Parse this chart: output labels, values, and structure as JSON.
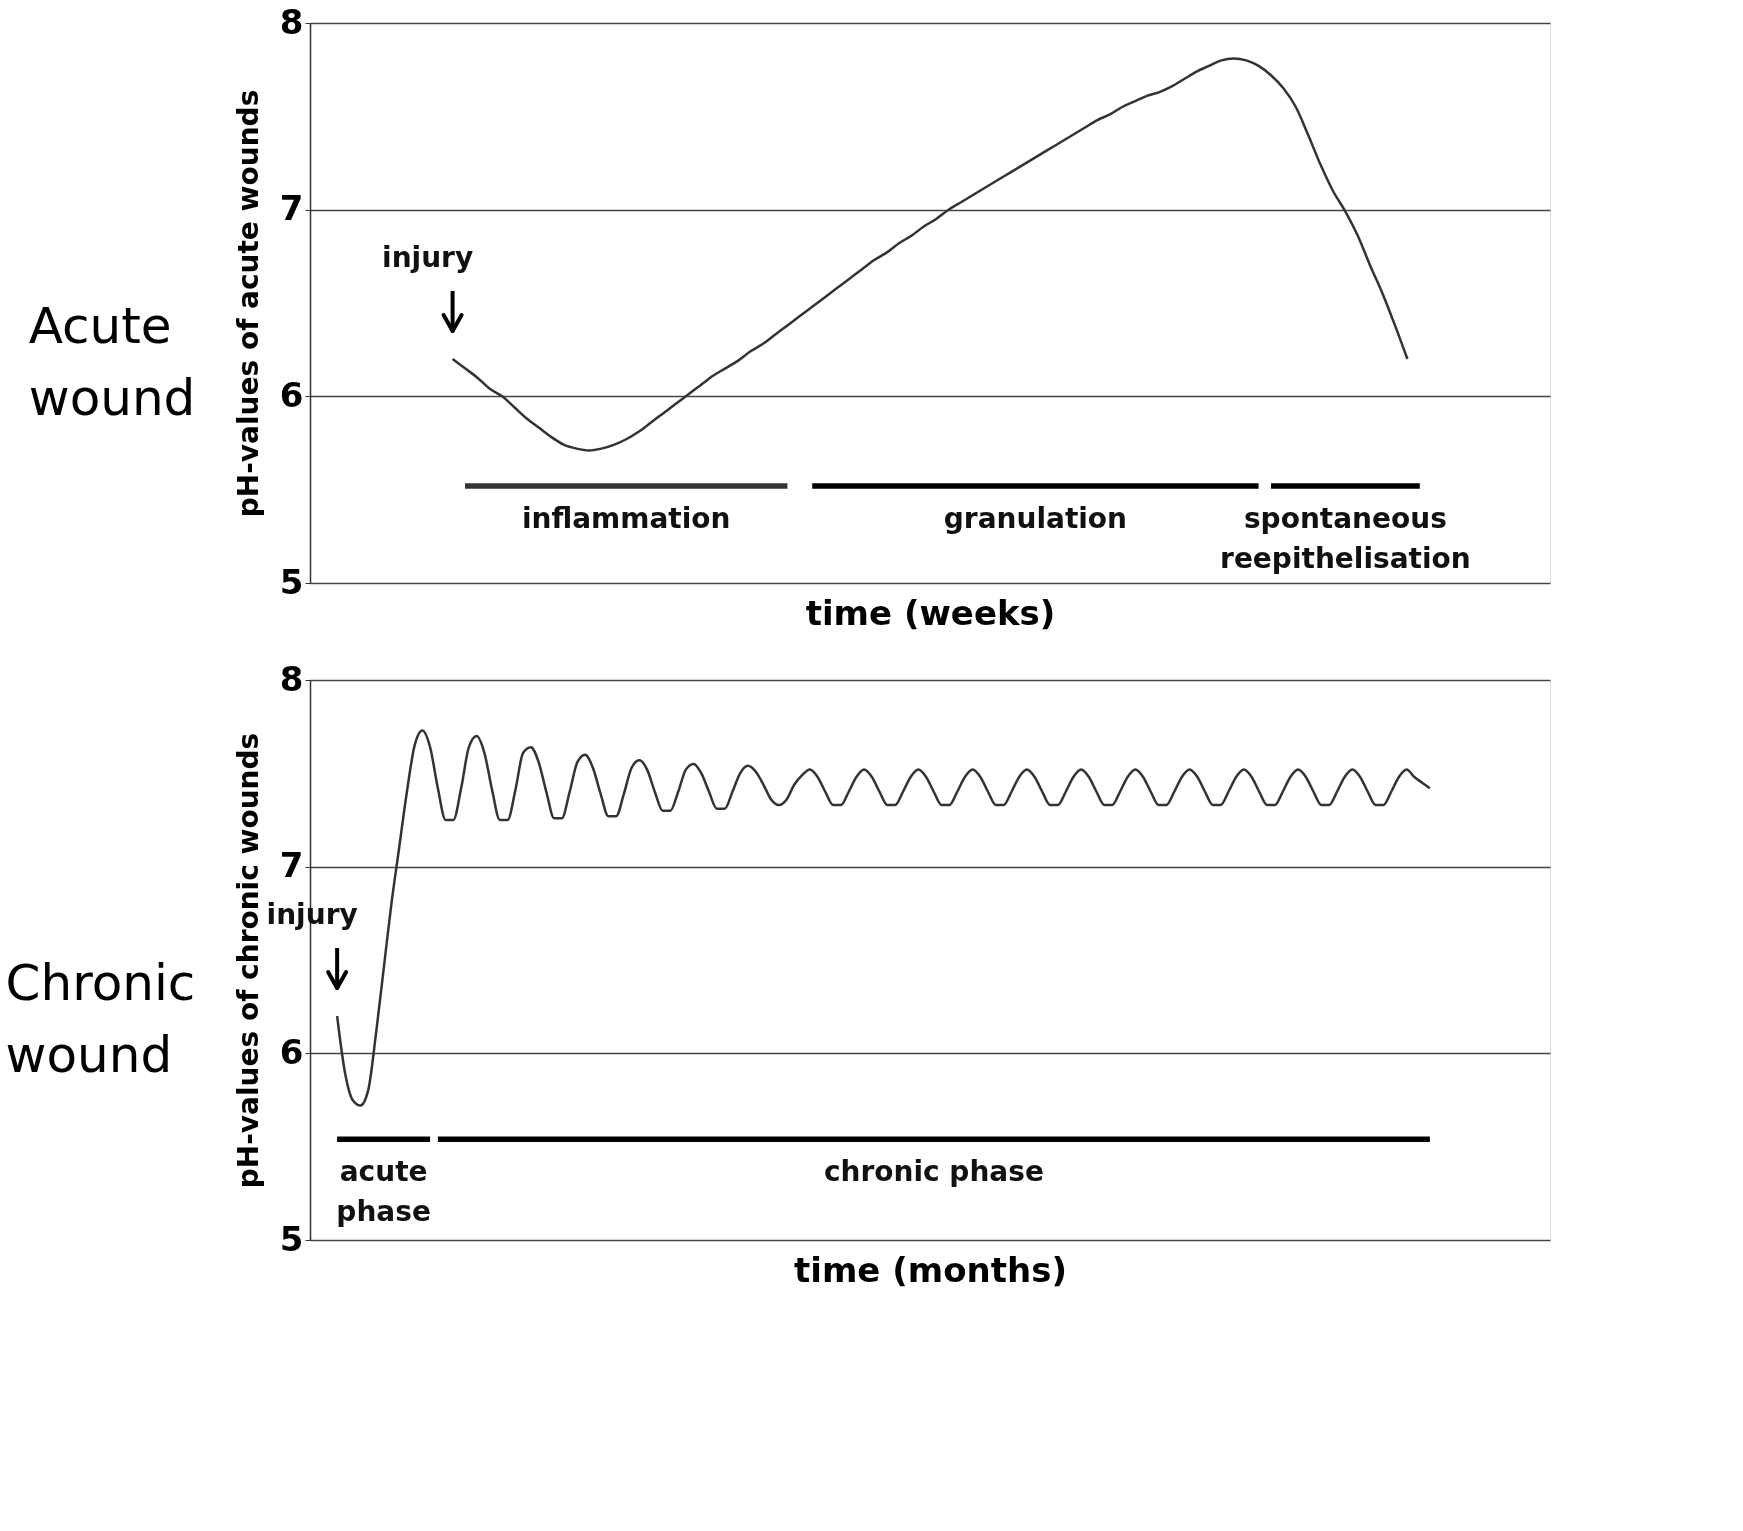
{
  "chart_data": [
    {
      "type": "line",
      "title": "Acute wound",
      "xlabel": "time (weeks)",
      "ylabel": "pH-values of acute wounds",
      "categories": [
        null,
        null,
        null,
        null,
        null,
        null,
        null,
        null,
        null,
        null,
        null,
        null,
        null,
        null,
        null,
        null,
        null,
        null,
        null,
        null,
        null,
        null,
        null,
        null,
        null,
        null,
        null,
        null,
        null,
        null,
        null,
        null,
        null,
        null,
        null,
        null,
        null,
        null,
        null,
        null,
        null,
        null,
        null,
        null,
        null,
        null,
        null,
        null,
        null,
        null,
        null,
        null,
        null,
        null,
        null,
        null,
        null,
        null,
        null,
        null,
        null,
        null,
        null,
        null,
        null,
        null,
        null,
        null,
        null,
        null,
        null,
        null,
        null,
        null,
        null,
        null,
        null,
        null,
        null,
        null,
        null,
        null,
        null,
        null,
        null,
        null,
        null,
        null,
        null,
        null,
        null,
        null,
        null,
        null,
        null,
        null,
        null,
        null,
        null,
        null
      ],
      "ylim": [
        5,
        8
      ],
      "yticks": [
        5,
        6,
        7,
        8
      ],
      "grid": "y",
      "tick_labels": "y",
      "series": [
        {
          "color": "#333333",
          "values": [
            null,
            null,
            null,
            null,
            null,
            null,
            null,
            null,
            null,
            null,
            null,
            6.2,
            6.15,
            6.1,
            6.04,
            6.0,
            5.94,
            5.88,
            5.83,
            5.78,
            5.74,
            5.72,
            5.71,
            5.72,
            5.74,
            5.77,
            5.81,
            5.86,
            5.91,
            5.96,
            6.01,
            6.06,
            6.11,
            6.15,
            6.19,
            6.24,
            6.28,
            6.33,
            6.38,
            6.43,
            6.48,
            6.53,
            6.58,
            6.63,
            6.68,
            6.73,
            6.77,
            6.82,
            6.86,
            6.91,
            6.95,
            7.0,
            7.04,
            7.08,
            7.12,
            7.16,
            7.2,
            7.24,
            7.28,
            7.32,
            7.36,
            7.4,
            7.44,
            7.48,
            7.51,
            7.55,
            7.58,
            7.61,
            7.63,
            7.66,
            7.7,
            7.74,
            7.77,
            7.8,
            7.81,
            7.8,
            7.77,
            7.72,
            7.65,
            7.55,
            7.4,
            7.24,
            7.1,
            6.99,
            6.86,
            6.7,
            6.55,
            6.38,
            6.2,
            null,
            null,
            null,
            null,
            null,
            null,
            null,
            null,
            null,
            null,
            null
          ]
        },
        {
          "color": "#333333",
          "values": [
            null,
            null,
            null,
            null,
            null,
            null,
            null,
            null,
            null,
            null,
            null,
            null,
            5.52,
            5.52,
            5.52,
            5.52,
            5.52,
            5.52,
            5.52,
            5.52,
            5.52,
            5.52,
            5.52,
            5.52,
            5.52,
            5.52,
            5.52,
            5.52,
            5.52,
            5.52,
            5.52,
            5.52,
            5.52,
            5.52,
            5.52,
            5.52,
            5.52,
            5.52,
            5.52,
            null,
            null,
            null,
            null,
            null,
            null,
            null,
            null,
            null,
            null,
            null,
            null,
            null,
            null,
            null,
            null,
            null,
            null,
            null,
            null,
            null,
            null,
            null,
            null,
            null,
            null,
            null,
            null,
            null,
            null,
            null,
            null,
            null,
            null,
            null,
            null,
            null,
            null,
            null,
            null,
            null,
            null,
            null,
            null,
            null,
            null,
            null,
            null,
            null,
            null,
            null,
            null,
            null,
            null,
            null,
            null,
            null,
            null,
            null,
            null,
            null
          ]
        },
        {
          "color": "#000000",
          "values": [
            null,
            null,
            null,
            null,
            null,
            null,
            null,
            null,
            null,
            null,
            null,
            null,
            null,
            null,
            null,
            null,
            null,
            null,
            null,
            null,
            null,
            null,
            null,
            null,
            null,
            null,
            null,
            null,
            null,
            null,
            null,
            null,
            null,
            null,
            null,
            null,
            null,
            null,
            null,
            null,
            5.52,
            5.52,
            5.52,
            5.52,
            5.52,
            5.52,
            5.52,
            5.52,
            5.52,
            5.52,
            5.52,
            5.52,
            5.52,
            5.52,
            5.52,
            5.52,
            5.52,
            5.52,
            5.52,
            5.52,
            5.52,
            5.52,
            5.52,
            5.52,
            5.52,
            5.52,
            5.52,
            5.52,
            5.52,
            5.52,
            5.52,
            5.52,
            5.52,
            5.52,
            5.52,
            5.52,
            5.52,
            null,
            null,
            null,
            null,
            null,
            null,
            null,
            null,
            null,
            null,
            null,
            null,
            null,
            null,
            null,
            null,
            null,
            null,
            null,
            null,
            null,
            null,
            null
          ]
        },
        {
          "color": "#000000",
          "values": [
            null,
            null,
            null,
            null,
            null,
            null,
            null,
            null,
            null,
            null,
            null,
            null,
            null,
            null,
            null,
            null,
            null,
            null,
            null,
            null,
            null,
            null,
            null,
            null,
            null,
            null,
            null,
            null,
            null,
            null,
            null,
            null,
            null,
            null,
            null,
            null,
            null,
            null,
            null,
            null,
            null,
            null,
            null,
            null,
            null,
            null,
            null,
            null,
            null,
            null,
            null,
            null,
            null,
            null,
            null,
            null,
            null,
            null,
            null,
            null,
            null,
            null,
            null,
            null,
            null,
            null,
            null,
            null,
            null,
            null,
            null,
            null,
            null,
            null,
            null,
            null,
            null,
            5.52,
            5.52,
            5.52,
            5.52,
            5.52,
            5.52,
            5.52,
            5.52,
            5.52,
            5.52,
            5.52,
            5.52,
            5.52,
            null,
            null,
            null,
            null,
            null,
            null,
            null,
            null,
            null,
            null
          ]
        }
      ],
      "annotations": [
        "injury",
        "inflammation",
        "granulation",
        "spontaneous reepithelisation"
      ]
    },
    {
      "type": "line",
      "title": "Chronic wound",
      "xlabel": "time (months)",
      "ylabel": "pH-values of chronic wounds",
      "categories": [
        null,
        null,
        null,
        null,
        null,
        null,
        null,
        null,
        null,
        null,
        null,
        null,
        null,
        null,
        null,
        null,
        null,
        null,
        null,
        null,
        null,
        null,
        null,
        null,
        null,
        null,
        null,
        null,
        null,
        null,
        null,
        null,
        null,
        null,
        null,
        null,
        null,
        null,
        null,
        null,
        null,
        null,
        null,
        null,
        null,
        null,
        null,
        null,
        null,
        null,
        null,
        null,
        null,
        null,
        null,
        null,
        null,
        null,
        null,
        null,
        null,
        null,
        null,
        null,
        null,
        null,
        null,
        null,
        null,
        null,
        null,
        null,
        null,
        null,
        null,
        null,
        null,
        null,
        null,
        null,
        null,
        null,
        null,
        null,
        null,
        null,
        null,
        null,
        null,
        null,
        null,
        null,
        null,
        null,
        null,
        null,
        null,
        null,
        null,
        null,
        null,
        null,
        null,
        null,
        null,
        null,
        null,
        null,
        null,
        null,
        null,
        null,
        null,
        null,
        null,
        null,
        null,
        null,
        null,
        null,
        null,
        null,
        null,
        null,
        null,
        null,
        null,
        null,
        null,
        null,
        null,
        null,
        null,
        null,
        null,
        null,
        null,
        null,
        null,
        null,
        null,
        null,
        null,
        null,
        null,
        null,
        null,
        null,
        null,
        null,
        null,
        null,
        null,
        null,
        null,
        null,
        null,
        null,
        null,
        null
      ],
      "ylim": [
        5,
        8
      ],
      "yticks": [
        5,
        6,
        7,
        8
      ],
      "grid": "y",
      "tick_labels": "y",
      "series": [
        {
          "color": "#333333",
          "values": [
            null,
            null,
            null,
            6.2,
            5.9,
            5.75,
            5.72,
            5.8,
            6.1,
            6.45,
            6.8,
            7.1,
            7.4,
            7.65,
            7.73,
            7.64,
            7.42,
            7.25,
            7.25,
            7.42,
            7.64,
            7.7,
            7.61,
            7.41,
            7.25,
            7.25,
            7.41,
            7.61,
            7.64,
            7.56,
            7.4,
            7.26,
            7.26,
            7.4,
            7.56,
            7.6,
            7.53,
            7.39,
            7.27,
            7.27,
            7.39,
            7.53,
            7.57,
            7.52,
            7.4,
            7.3,
            7.3,
            7.4,
            7.52,
            7.55,
            7.5,
            7.4,
            7.31,
            7.31,
            7.4,
            7.5,
            7.54,
            7.51,
            7.44,
            7.36,
            7.33,
            7.36,
            7.44,
            7.49,
            7.52,
            7.48,
            7.4,
            7.33,
            7.33,
            7.4,
            7.48,
            7.52,
            7.48,
            7.4,
            7.33,
            7.33,
            7.4,
            7.48,
            7.52,
            7.48,
            7.4,
            7.33,
            7.33,
            7.4,
            7.48,
            7.52,
            7.48,
            7.4,
            7.33,
            7.33,
            7.4,
            7.48,
            7.52,
            7.48,
            7.4,
            7.33,
            7.33,
            7.4,
            7.48,
            7.52,
            7.48,
            7.4,
            7.33,
            7.33,
            7.4,
            7.48,
            7.52,
            7.48,
            7.4,
            7.33,
            7.33,
            7.4,
            7.48,
            7.52,
            7.48,
            7.4,
            7.33,
            7.33,
            7.4,
            7.48,
            7.52,
            7.48,
            7.4,
            7.33,
            7.33,
            7.4,
            7.48,
            7.52,
            7.48,
            7.4,
            7.33,
            7.33,
            7.4,
            7.48,
            7.52,
            7.48,
            7.4,
            7.33,
            7.33,
            7.4,
            7.48,
            7.52,
            7.48,
            7.45,
            7.42,
            null,
            null,
            null,
            null,
            null,
            null,
            null,
            null,
            null,
            null,
            null,
            null,
            null,
            null,
            null
          ]
        },
        {
          "color": "#000000",
          "values": [
            null,
            null,
            null,
            5.54,
            5.54,
            5.54,
            5.54,
            5.54,
            5.54,
            5.54,
            5.54,
            5.54,
            5.54,
            5.54,
            5.54,
            5.54,
            null,
            null,
            null,
            null,
            null,
            null,
            null,
            null,
            null,
            null,
            null,
            null,
            null,
            null,
            null,
            null,
            null,
            null,
            null,
            null,
            null,
            null,
            null,
            null,
            null,
            null,
            null,
            null,
            null,
            null,
            null,
            null,
            null,
            null,
            null,
            null,
            null,
            null,
            null,
            null,
            null,
            null,
            null,
            null,
            null,
            null,
            null,
            null,
            null,
            null,
            null,
            null,
            null,
            null,
            null,
            null,
            null,
            null,
            null,
            null,
            null,
            null,
            null,
            null,
            null,
            null,
            null,
            null,
            null,
            null,
            null,
            null,
            null,
            null,
            null,
            null,
            null,
            null,
            null,
            null,
            null,
            null,
            null,
            null,
            null,
            null,
            null,
            null,
            null,
            null,
            null,
            null,
            null,
            null,
            null,
            null,
            null,
            null,
            null,
            null,
            null,
            null,
            null,
            null,
            null,
            null,
            null,
            null,
            null,
            null,
            null,
            null,
            null,
            null,
            null,
            null,
            null,
            null,
            null,
            null,
            null,
            null,
            null,
            null,
            null,
            null,
            null,
            null,
            null,
            null,
            null,
            null,
            null,
            null,
            null,
            null,
            null,
            null,
            null,
            null,
            null,
            null,
            null,
            null
          ]
        },
        {
          "color": "#000000",
          "values": [
            null,
            null,
            null,
            null,
            null,
            null,
            null,
            null,
            null,
            null,
            null,
            null,
            null,
            null,
            null,
            null,
            5.54,
            5.54,
            5.54,
            5.54,
            5.54,
            5.54,
            5.54,
            5.54,
            5.54,
            5.54,
            5.54,
            5.54,
            5.54,
            5.54,
            5.54,
            5.54,
            5.54,
            5.54,
            5.54,
            5.54,
            5.54,
            5.54,
            5.54,
            5.54,
            5.54,
            5.54,
            5.54,
            5.54,
            5.54,
            5.54,
            5.54,
            5.54,
            5.54,
            5.54,
            5.54,
            5.54,
            5.54,
            5.54,
            5.54,
            5.54,
            5.54,
            5.54,
            5.54,
            5.54,
            5.54,
            5.54,
            5.54,
            5.54,
            5.54,
            5.54,
            5.54,
            5.54,
            5.54,
            5.54,
            5.54,
            5.54,
            5.54,
            5.54,
            5.54,
            5.54,
            5.54,
            5.54,
            5.54,
            5.54,
            5.54,
            5.54,
            5.54,
            5.54,
            5.54,
            5.54,
            5.54,
            5.54,
            5.54,
            5.54,
            5.54,
            5.54,
            5.54,
            5.54,
            5.54,
            5.54,
            5.54,
            5.54,
            5.54,
            5.54,
            5.54,
            5.54,
            5.54,
            5.54,
            5.54,
            5.54,
            5.54,
            5.54,
            5.54,
            5.54,
            5.54,
            5.54,
            5.54,
            5.54,
            5.54,
            5.54,
            5.54,
            5.54,
            5.54,
            5.54,
            5.54,
            5.54,
            5.54,
            5.54,
            5.54,
            5.54,
            5.54,
            5.54,
            5.54,
            5.54,
            5.54,
            5.54,
            5.54,
            5.54,
            5.54,
            5.54,
            5.54,
            5.54,
            5.54,
            5.54,
            5.54,
            5.54,
            5.54,
            5.54,
            5.54,
            null,
            null,
            null,
            null,
            null,
            null,
            null,
            null,
            null,
            null,
            null,
            null,
            null,
            null,
            null
          ]
        }
      ],
      "annotations": [
        "injury",
        "acute phase",
        "chronic phase"
      ]
    }
  ]
}
